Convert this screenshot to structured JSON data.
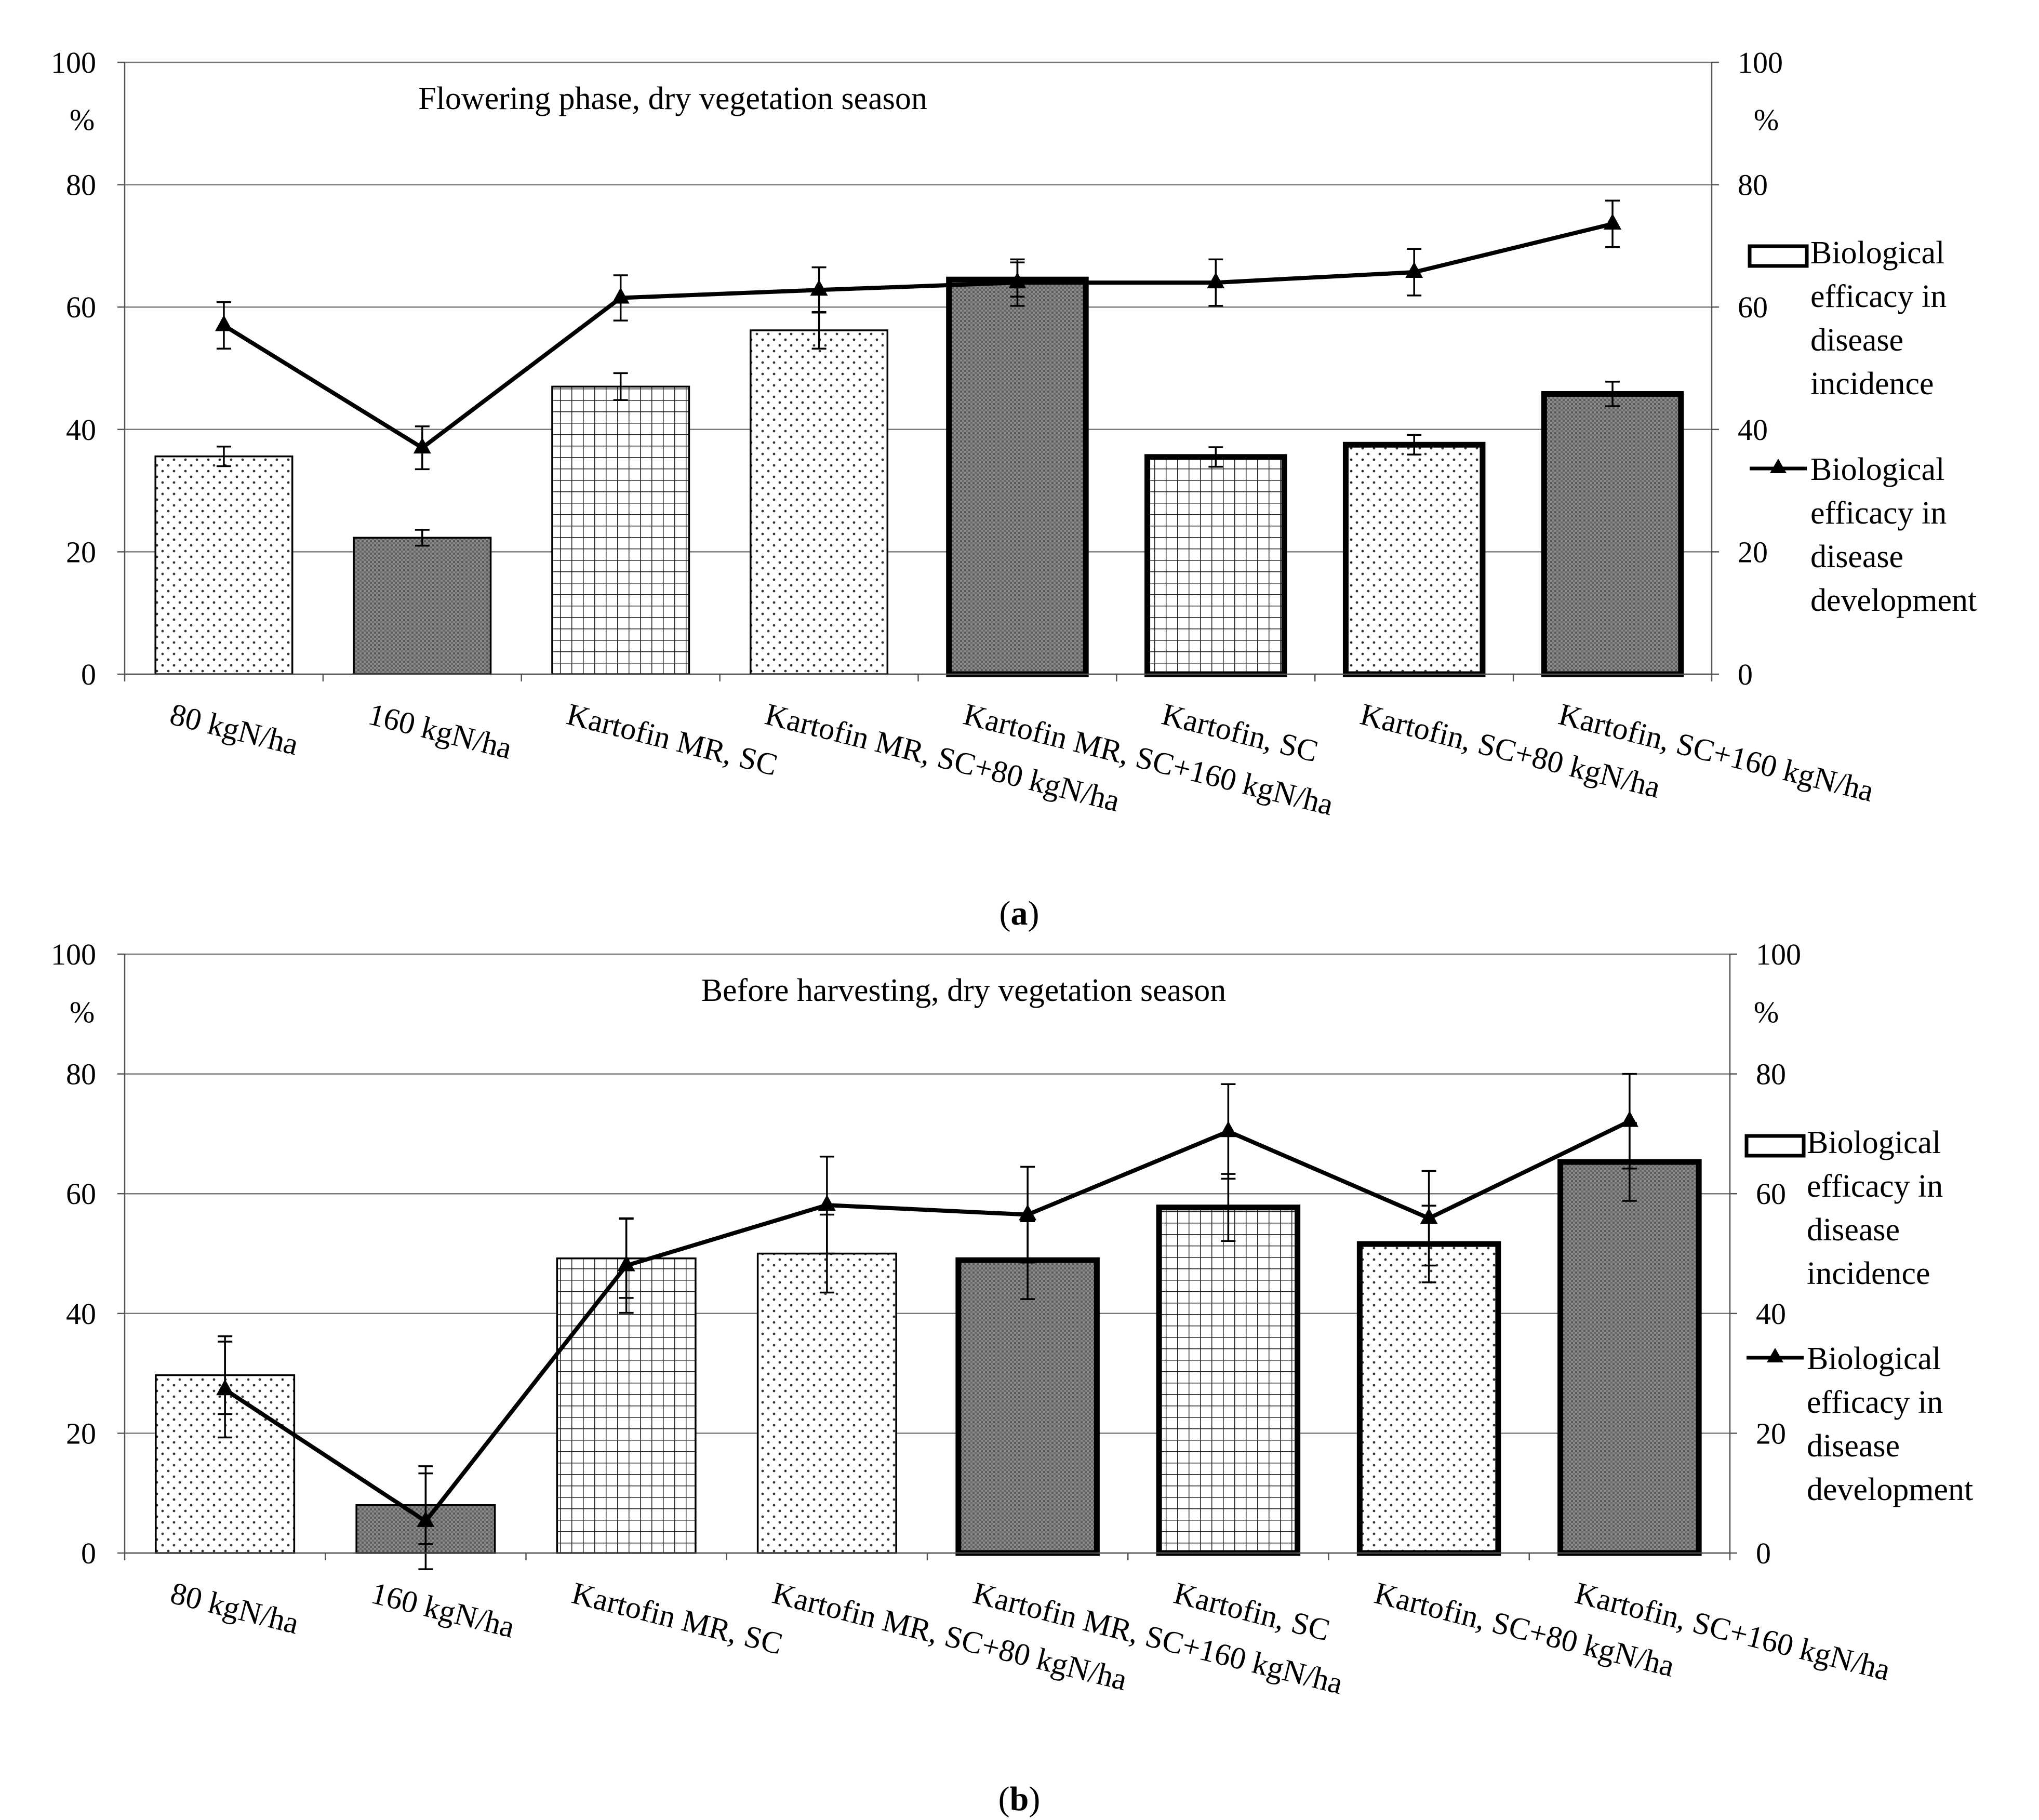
{
  "caption_open": "(",
  "caption_close": ")",
  "chart_data": [
    {
      "type": "bar",
      "panel_letter": "a",
      "title": "Flowering phase, dry vegetation season",
      "y_unit_left": "%",
      "y_unit_right": "%",
      "ylim": [
        0,
        100
      ],
      "yticks": [
        0,
        20,
        40,
        60,
        80,
        100
      ],
      "grid": true,
      "legend_position": "right",
      "categories": [
        "80 kgN/ha",
        "160 kgN/ha",
        "Kartofin MR, SC",
        "Kartofin MR, SC+80 kgN/ha",
        "Kartofin MR, SC+160 kgN/ha",
        "Kartofin, SC",
        "Kartofin, SC+80 kgN/ha",
        "Kartofin, SC+160 kgN/ha"
      ],
      "series": [
        {
          "name": "Biological efficacy in disease incidence",
          "legend_lines": [
            "Biological",
            "efficacy in",
            "disease",
            "incidence"
          ],
          "kind": "bar",
          "values": [
            35.6,
            22.3,
            47.0,
            56.2,
            64.5,
            35.5,
            37.5,
            45.8
          ],
          "errors": [
            1.6,
            1.3,
            2.2,
            3.0,
            2.8,
            1.6,
            1.6,
            2.0
          ],
          "patterns": [
            "dots",
            "dense",
            "grid",
            "dots",
            "dense",
            "grid",
            "dots",
            "dense"
          ],
          "thick_outline": [
            false,
            false,
            false,
            false,
            true,
            true,
            true,
            true
          ]
        },
        {
          "name": "Biological efficacy in disease development",
          "legend_lines": [
            "Biological",
            "efficacy in",
            "disease",
            "development"
          ],
          "kind": "line",
          "values": [
            57.0,
            37.0,
            61.5,
            62.8,
            64.0,
            64.0,
            65.7,
            73.6
          ],
          "errors": [
            3.8,
            3.5,
            3.7,
            3.7,
            3.8,
            3.8,
            3.8,
            3.8
          ]
        }
      ]
    },
    {
      "type": "bar",
      "panel_letter": "b",
      "title": "Before harvesting, dry vegetation season",
      "y_unit_left": "%",
      "y_unit_right": "%",
      "ylim": [
        0,
        100
      ],
      "yticks": [
        0,
        20,
        40,
        60,
        80,
        100
      ],
      "grid": true,
      "legend_position": "right",
      "categories": [
        "80 kgN/ha",
        "160 kgN/ha",
        "Kartofin MR, SC",
        "Kartofin MR, SC+80 kgN/ha",
        "Kartofin MR, SC+160 kgN/ha",
        "Kartofin, SC",
        "Kartofin, SC+80 kgN/ha",
        "Kartofin, SC+160 kgN/ha"
      ],
      "series": [
        {
          "name": "Biological efficacy in disease incidence",
          "legend_lines": [
            "Biological",
            "efficacy in",
            "disease",
            "incidence"
          ],
          "kind": "bar",
          "values": [
            29.7,
            8.0,
            49.2,
            50.0,
            48.9,
            57.7,
            51.6,
            65.3
          ],
          "errors": [
            6.5,
            6.5,
            6.6,
            6.5,
            6.5,
            5.6,
            6.4,
            6.5
          ],
          "patterns": [
            "dots",
            "dense",
            "grid",
            "dots",
            "dense",
            "grid",
            "dots",
            "dense"
          ],
          "thick_outline": [
            false,
            false,
            false,
            false,
            true,
            true,
            true,
            true
          ]
        },
        {
          "name": "Biological efficacy in disease development",
          "legend_lines": [
            "Biological",
            "efficacy in",
            "disease",
            "development"
          ],
          "kind": "line",
          "values": [
            27.3,
            5.3,
            48.0,
            58.1,
            56.5,
            70.4,
            55.9,
            72.1
          ],
          "errors": [
            8.0,
            8.0,
            7.9,
            8.1,
            8.0,
            7.9,
            7.9,
            7.9
          ]
        }
      ]
    }
  ]
}
